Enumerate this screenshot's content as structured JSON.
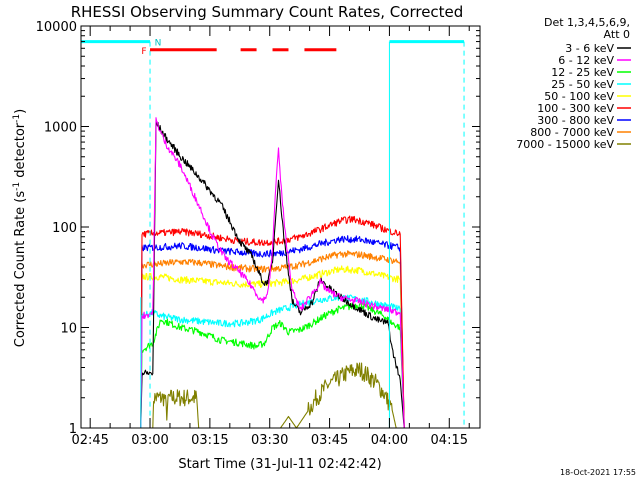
{
  "chart_data": {
    "type": "line",
    "title": "RHESSI Observing Summary Count Rates, Corrected",
    "xlabel": "Start Time (31-Jul-11 02:42:42)",
    "ylabel": "Corrected Count Rate (s",
    "ylabel_sup": "-1",
    "ylabel_mid": " detector",
    "ylabel_end": ")",
    "y_scale": "log",
    "ylim": [
      1,
      10000
    ],
    "y_ticks": [
      {
        "value": 1,
        "label": "1"
      },
      {
        "value": 10,
        "label": "10"
      },
      {
        "value": 100,
        "label": "100"
      },
      {
        "value": 1000,
        "label": "1000"
      },
      {
        "value": 10000,
        "label": "10000"
      }
    ],
    "x_unit": "minutes after 02:42:42",
    "xlim": [
      0,
      100
    ],
    "x_ticks": [
      {
        "value": 2.3,
        "label": "02:45"
      },
      {
        "value": 17.3,
        "label": "03:00"
      },
      {
        "value": 32.3,
        "label": "03:15"
      },
      {
        "value": 47.3,
        "label": "03:30"
      },
      {
        "value": 62.3,
        "label": "03:45"
      },
      {
        "value": 77.3,
        "label": "04:00"
      },
      {
        "value": 92.3,
        "label": "04:15"
      }
    ],
    "legend_header": [
      "Det 1,3,4,5,6,9,",
      "Att 0"
    ],
    "legend_position": "right",
    "series": [
      {
        "name": "3 - 6 keV",
        "color": "#000000",
        "points": [
          [
            15,
            1
          ],
          [
            15.3,
            3.5
          ],
          [
            18,
            3.5
          ],
          [
            18.8,
            1100
          ],
          [
            21,
            800
          ],
          [
            25,
            500
          ],
          [
            30,
            300
          ],
          [
            35,
            170
          ],
          [
            38,
            100
          ],
          [
            40,
            70
          ],
          [
            43,
            50
          ],
          [
            45,
            32
          ],
          [
            46,
            27
          ],
          [
            47,
            30
          ],
          [
            48,
            45
          ],
          [
            49,
            170
          ],
          [
            49.5,
            300
          ],
          [
            50,
            180
          ],
          [
            51,
            70
          ],
          [
            53,
            18
          ],
          [
            55,
            14
          ],
          [
            58,
            18
          ],
          [
            60,
            30
          ],
          [
            62,
            25
          ],
          [
            65,
            20
          ],
          [
            70,
            15
          ],
          [
            74,
            12
          ],
          [
            77,
            11
          ],
          [
            78,
            6
          ],
          [
            80,
            3
          ],
          [
            81,
            1
          ]
        ]
      },
      {
        "name": "6 - 12 keV",
        "color": "#ff00ff",
        "points": [
          [
            15,
            1
          ],
          [
            15.3,
            13
          ],
          [
            18,
            14
          ],
          [
            18.8,
            1150
          ],
          [
            21,
            700
          ],
          [
            25,
            400
          ],
          [
            30,
            150
          ],
          [
            33,
            80
          ],
          [
            36,
            50
          ],
          [
            40,
            35
          ],
          [
            43,
            25
          ],
          [
            45,
            19
          ],
          [
            46,
            19
          ],
          [
            47,
            24
          ],
          [
            48,
            60
          ],
          [
            49,
            350
          ],
          [
            49.5,
            580
          ],
          [
            50,
            300
          ],
          [
            51,
            100
          ],
          [
            53,
            23
          ],
          [
            55,
            15
          ],
          [
            58,
            22
          ],
          [
            60,
            28
          ],
          [
            62,
            23
          ],
          [
            65,
            20
          ],
          [
            70,
            18
          ],
          [
            74,
            16
          ],
          [
            77,
            15
          ],
          [
            80,
            14
          ],
          [
            81,
            1
          ]
        ]
      },
      {
        "name": "12 - 25 keV",
        "color": "#00ff00",
        "points": [
          [
            15,
            1
          ],
          [
            15.3,
            6
          ],
          [
            18,
            7
          ],
          [
            20,
            12
          ],
          [
            25,
            10
          ],
          [
            30,
            9
          ],
          [
            35,
            7.5
          ],
          [
            40,
            7
          ],
          [
            44,
            6.5
          ],
          [
            46,
            7
          ],
          [
            48,
            10
          ],
          [
            50,
            11
          ],
          [
            52,
            9
          ],
          [
            55,
            9.5
          ],
          [
            58,
            11
          ],
          [
            61,
            13
          ],
          [
            64,
            15
          ],
          [
            67,
            16
          ],
          [
            70,
            17
          ],
          [
            73,
            15
          ],
          [
            76,
            13
          ],
          [
            78,
            11
          ],
          [
            80,
            10
          ],
          [
            81,
            1
          ]
        ]
      },
      {
        "name": "25 - 50 keV",
        "color": "#00ffff",
        "points": [
          [
            15,
            1
          ],
          [
            15.3,
            13
          ],
          [
            18,
            14
          ],
          [
            20,
            13
          ],
          [
            25,
            12
          ],
          [
            30,
            11.5
          ],
          [
            35,
            11
          ],
          [
            40,
            11
          ],
          [
            45,
            12
          ],
          [
            48,
            14
          ],
          [
            50,
            15
          ],
          [
            55,
            17
          ],
          [
            60,
            19
          ],
          [
            65,
            20
          ],
          [
            70,
            19
          ],
          [
            75,
            17
          ],
          [
            78,
            16
          ],
          [
            80,
            15
          ],
          [
            81,
            1
          ]
        ]
      },
      {
        "name": "50 - 100 keV",
        "color": "#ffff00",
        "points": [
          [
            15,
            1
          ],
          [
            15.3,
            32
          ],
          [
            20,
            32
          ],
          [
            25,
            30
          ],
          [
            30,
            29
          ],
          [
            35,
            28
          ],
          [
            40,
            27
          ],
          [
            45,
            27
          ],
          [
            50,
            28
          ],
          [
            55,
            30
          ],
          [
            60,
            34
          ],
          [
            65,
            38
          ],
          [
            70,
            37
          ],
          [
            75,
            33
          ],
          [
            78,
            31
          ],
          [
            80,
            30
          ],
          [
            81,
            1
          ]
        ]
      },
      {
        "name": "100 - 300 keV",
        "color": "#ff0000",
        "points": [
          [
            15,
            1
          ],
          [
            15.3,
            85
          ],
          [
            20,
            87
          ],
          [
            25,
            90
          ],
          [
            30,
            85
          ],
          [
            35,
            78
          ],
          [
            40,
            72
          ],
          [
            45,
            70
          ],
          [
            50,
            72
          ],
          [
            55,
            80
          ],
          [
            60,
            95
          ],
          [
            65,
            115
          ],
          [
            68,
            120
          ],
          [
            72,
            110
          ],
          [
            76,
            95
          ],
          [
            80,
            85
          ],
          [
            81,
            1
          ]
        ]
      },
      {
        "name": "300 - 800 keV",
        "color": "#0000ff",
        "points": [
          [
            15,
            1
          ],
          [
            15.3,
            62
          ],
          [
            20,
            63
          ],
          [
            25,
            65
          ],
          [
            30,
            62
          ],
          [
            35,
            58
          ],
          [
            40,
            56
          ],
          [
            45,
            54
          ],
          [
            50,
            55
          ],
          [
            55,
            60
          ],
          [
            60,
            68
          ],
          [
            65,
            76
          ],
          [
            70,
            75
          ],
          [
            75,
            68
          ],
          [
            80,
            62
          ],
          [
            81,
            1
          ]
        ]
      },
      {
        "name": "800 - 7000 keV",
        "color": "#ff8000",
        "points": [
          [
            15,
            1
          ],
          [
            15.3,
            42
          ],
          [
            20,
            43
          ],
          [
            25,
            45
          ],
          [
            30,
            44
          ],
          [
            35,
            41
          ],
          [
            40,
            39
          ],
          [
            45,
            38
          ],
          [
            50,
            39
          ],
          [
            55,
            42
          ],
          [
            60,
            48
          ],
          [
            65,
            54
          ],
          [
            70,
            53
          ],
          [
            75,
            49
          ],
          [
            80,
            45
          ],
          [
            81,
            1
          ]
        ]
      },
      {
        "name": "7000 - 15000 keV",
        "color": "#808000",
        "points": [
          [
            18,
            1
          ],
          [
            18.2,
            2
          ],
          [
            21,
            2
          ],
          [
            21.5,
            1.4
          ],
          [
            22,
            2
          ],
          [
            29,
            2
          ],
          [
            29.5,
            1
          ],
          [
            50,
            1
          ],
          [
            52,
            1.3
          ],
          [
            54,
            1
          ],
          [
            57,
            1.5
          ],
          [
            59,
            2
          ],
          [
            62,
            2.7
          ],
          [
            64,
            3
          ],
          [
            67,
            3.6
          ],
          [
            70,
            3.8
          ],
          [
            72,
            3.3
          ],
          [
            74,
            2.8
          ],
          [
            76,
            2.2
          ],
          [
            78,
            1.5
          ],
          [
            79,
            1
          ]
        ]
      }
    ],
    "markers": {
      "cyan_level": 7000,
      "cyan_left_end": 17.3,
      "cyan_right_start": 77.3,
      "cyan_right_end": 96,
      "n_label": "N",
      "n_at": 17.3,
      "f_label": "F",
      "f_level": 5800,
      "f_segments": [
        [
          17.3,
          34
        ],
        [
          40,
          44
        ],
        [
          48,
          52
        ],
        [
          56,
          64
        ]
      ]
    },
    "timestamp": "18-Oct-2021 17:55"
  }
}
